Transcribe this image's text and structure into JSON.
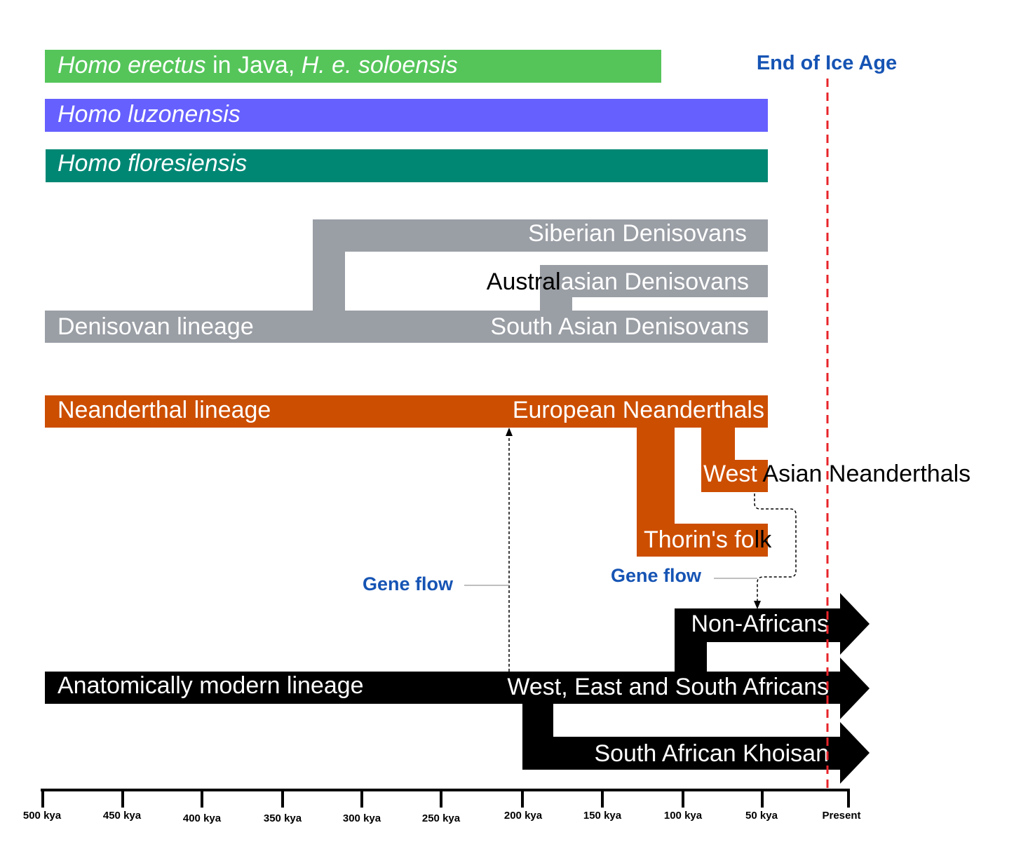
{
  "colors": {
    "erectus": "#55c55a",
    "luzonensis": "#6660ff",
    "floresiensis": "#008774",
    "denisovan": "#9a9ea5",
    "neanderthal": "#cc4e00",
    "modern": "#000000",
    "annotation": "#1654b4",
    "ice_age_line": "#e8242a"
  },
  "lineages": {
    "erectus": {
      "italic_1": "Homo erectus",
      "plain": " in Java, ",
      "italic_2": "H. e. soloensis"
    },
    "luzonensis": "Homo luzonensis",
    "floresiensis": "Homo floresiensis",
    "denisovan": {
      "root": "Denisovan lineage",
      "siberian": "Siberian Denisovans",
      "australasian_a": "Austral",
      "australasian_b": "asian Denisovans",
      "south_asian": "South Asian Denisovans"
    },
    "neanderthal": {
      "root": "Neanderthal lineage",
      "european": "European Neanderthals",
      "west_asian_a": "West",
      "west_asian_b": " Asian Neanderthals",
      "thorin_a": "Thorin's fo",
      "thorin_b": "lk"
    },
    "modern": {
      "root": "Anatomically modern lineage",
      "non_africans": "Non-Africans",
      "west_east_south": "West, East and South Africans",
      "khoisan": "South African Khoisan"
    }
  },
  "annotations": {
    "end_of_ice_age": "End of Ice Age",
    "gene_flow_left": "Gene flow",
    "gene_flow_right": "Gene flow"
  },
  "timeline": {
    "ticks": [
      "500 kya",
      "450 kya",
      "400 kya",
      "350 kya",
      "300 kya",
      "250 kya",
      "200 kya",
      "150 kya",
      "100 kya",
      "50 kya",
      "Present"
    ]
  }
}
